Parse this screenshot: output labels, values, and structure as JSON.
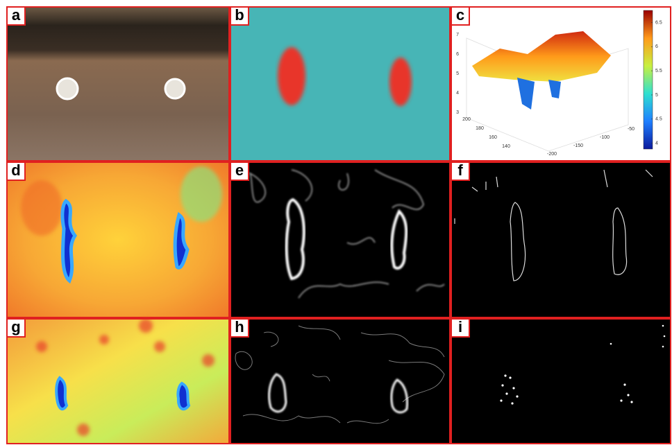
{
  "panels": [
    {
      "label": "a"
    },
    {
      "label": "b"
    },
    {
      "label": "c"
    },
    {
      "label": "d"
    },
    {
      "label": "e"
    },
    {
      "label": "f"
    },
    {
      "label": "g"
    },
    {
      "label": "h"
    },
    {
      "label": "i"
    }
  ],
  "panel_c": {
    "z_ticks": [
      3,
      4,
      5,
      6,
      7
    ],
    "y_ticks": [
      200,
      180,
      160,
      140
    ],
    "x_ticks": [
      -200,
      -150,
      -100,
      -50
    ],
    "colorbar_ticks": [
      4,
      4.5,
      5,
      5.5,
      6,
      6.5
    ]
  }
}
